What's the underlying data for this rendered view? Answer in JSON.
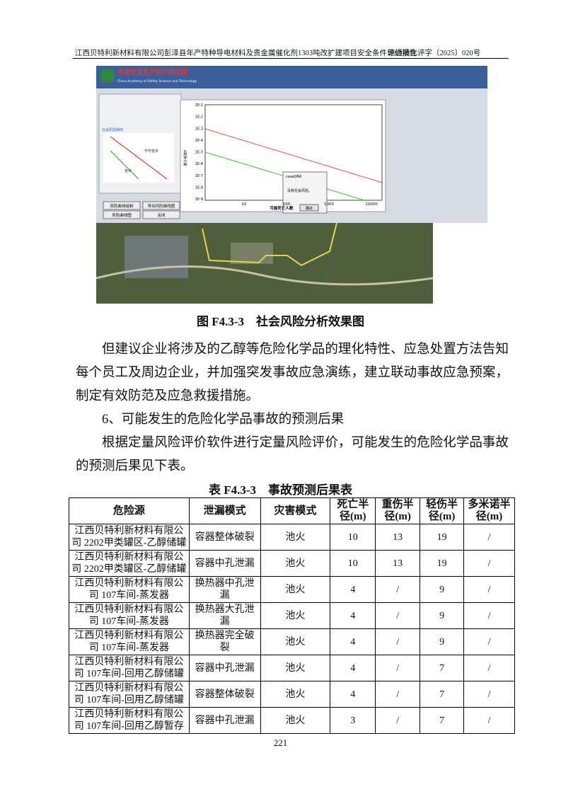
{
  "header": {
    "left": "江西贝特利新材料有限公司彭泽县年产特种导电材料及贵金属催化剂1303吨改扩建项目安全条件评价报告",
    "right": "赣通消化评字〔2025〕020号"
  },
  "figure": {
    "screenshot": {
      "org_name": "中国安全生产科学研究院",
      "org_name_en": "China Academy of Safety Science and Technology",
      "panel_title": "社会风险曲线",
      "small_labels": [
        "不可容许",
        "容许"
      ],
      "buttons": [
        "风险曲线绘制",
        "导出风险曲线图",
        "风险曲线图",
        "关闭"
      ],
      "y_axis_title": "累计频率F",
      "y_labels": [
        "1E-1",
        "1E-2",
        "1E-3",
        "1E-4",
        "1E-5",
        "1E-6",
        "1E-7",
        "1E-8",
        "1E-9"
      ],
      "x_labels": [
        "10",
        "100",
        "1000",
        "10000"
      ],
      "x_axis_title": "可能死亡人数",
      "dialog": {
        "title": "caseQRA",
        "message": "没有社会风险。",
        "button": "确定"
      }
    },
    "caption": "图 F4.3-3　社会风险分析效果图"
  },
  "paragraphs": [
    "但建议企业将涉及的乙醇等危险化学品的理化特性、应急处置方法告知每个员工及周边企业，并加强突发事故应急演练，建立联动事故应急预案，制定有效防范及应急救援措施。",
    "6、可能发生的危险化学品事故的预测后果",
    "根据定量风险评价软件进行定量风险评价，可能发生的危险化学品事故的预测后果见下表。"
  ],
  "table": {
    "caption": "表 F4.3-3　事故预测后果表",
    "columns": [
      "危险源",
      "泄漏模式",
      "灾害模式",
      "死亡半径(m)",
      "重伤半径(m)",
      "轻伤半径(m)",
      "多米诺半径(m)"
    ],
    "rows": [
      [
        "江西贝特利新材料有限公司 2202甲类罐区-乙醇储罐",
        "容器整体破裂",
        "池火",
        10,
        13,
        19,
        "/"
      ],
      [
        "江西贝特利新材料有限公司 2202甲类罐区-乙醇储罐",
        "容器中孔泄漏",
        "池火",
        10,
        13,
        19,
        "/"
      ],
      [
        "江西贝特利新材料有限公司 107车间-蒸发器",
        "换热器中孔泄漏",
        "池火",
        4,
        "/",
        9,
        "/"
      ],
      [
        "江西贝特利新材料有限公司 107车间-蒸发器",
        "换热器大孔泄漏",
        "池火",
        4,
        "/",
        9,
        "/"
      ],
      [
        "江西贝特利新材料有限公司 107车间-蒸发器",
        "换热器完全破裂",
        "池火",
        4,
        "/",
        9,
        "/"
      ],
      [
        "江西贝特利新材料有限公司 107车间-回用乙醇储罐",
        "容器中孔泄漏",
        "池火",
        4,
        "/",
        7,
        "/"
      ],
      [
        "江西贝特利新材料有限公司 107车间-回用乙醇储罐",
        "容器整体破裂",
        "池火",
        4,
        "/",
        7,
        "/"
      ],
      [
        "江西贝特利新材料有限公司 107车间-回用乙醇暂存",
        "容器中孔泄漏",
        "池火",
        3,
        "/",
        7,
        "/"
      ]
    ]
  },
  "page_number": "221"
}
